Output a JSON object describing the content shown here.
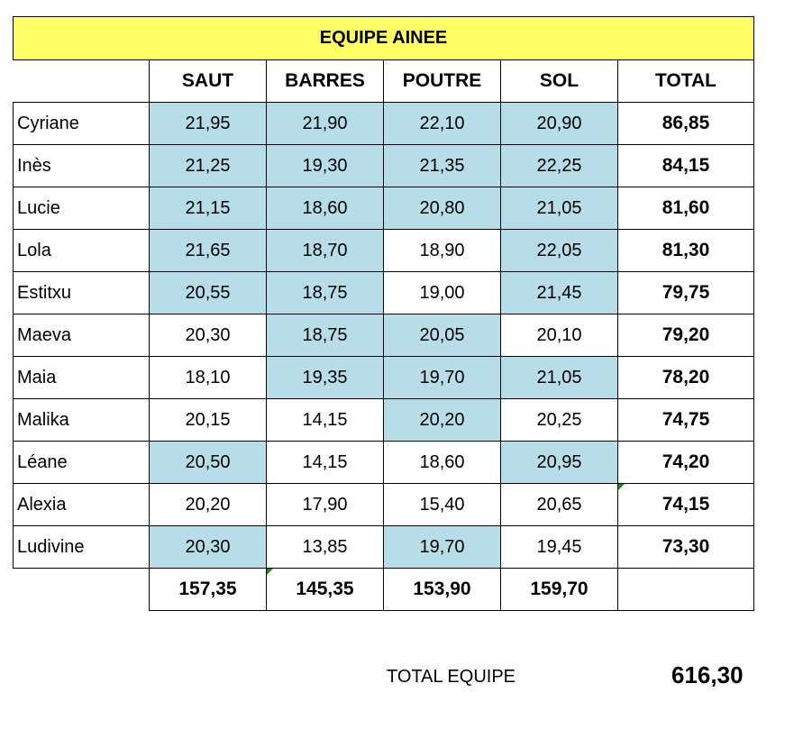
{
  "title": "EQUIPE AINEE",
  "headers": [
    "SAUT",
    "BARRES",
    "POUTRE",
    "SOL",
    "TOTAL"
  ],
  "highlight_color": "#b7dde8",
  "title_color": "#ffff66",
  "rows": [
    {
      "name": "Cyriane",
      "scores": [
        "21,95",
        "21,90",
        "22,10",
        "20,90"
      ],
      "total": "86,85",
      "hl": [
        true,
        true,
        true,
        true
      ]
    },
    {
      "name": "Inès",
      "scores": [
        "21,25",
        "19,30",
        "21,35",
        "22,25"
      ],
      "total": "84,15",
      "hl": [
        true,
        true,
        true,
        true
      ]
    },
    {
      "name": "Lucie",
      "scores": [
        "21,15",
        "18,60",
        "20,80",
        "21,05"
      ],
      "total": "81,60",
      "hl": [
        true,
        true,
        true,
        true
      ]
    },
    {
      "name": "Lola",
      "scores": [
        "21,65",
        "18,70",
        "18,90",
        "22,05"
      ],
      "total": "81,30",
      "hl": [
        true,
        true,
        false,
        true
      ]
    },
    {
      "name": "Estitxu",
      "scores": [
        "20,55",
        "18,75",
        "19,00",
        "21,45"
      ],
      "total": "79,75",
      "hl": [
        true,
        true,
        false,
        true
      ]
    },
    {
      "name": "Maeva",
      "scores": [
        "20,30",
        "18,75",
        "20,05",
        "20,10"
      ],
      "total": "79,20",
      "hl": [
        false,
        true,
        true,
        false
      ]
    },
    {
      "name": "Maia",
      "scores": [
        "18,10",
        "19,35",
        "19,70",
        "21,05"
      ],
      "total": "78,20",
      "hl": [
        false,
        true,
        true,
        true
      ]
    },
    {
      "name": "Malika",
      "scores": [
        "20,15",
        "14,15",
        "20,20",
        "20,25"
      ],
      "total": "74,75",
      "hl": [
        false,
        false,
        true,
        false
      ]
    },
    {
      "name": "Léane",
      "scores": [
        "20,50",
        "14,15",
        "18,60",
        "20,95"
      ],
      "total": "74,20",
      "hl": [
        true,
        false,
        false,
        true
      ]
    },
    {
      "name": "Alexia",
      "scores": [
        "20,20",
        "17,90",
        "15,40",
        "20,65"
      ],
      "total": "74,15",
      "hl": [
        false,
        false,
        false,
        false
      ]
    },
    {
      "name": "Ludivine",
      "scores": [
        "20,30",
        "13,85",
        "19,70",
        "19,45"
      ],
      "total": "73,30",
      "hl": [
        true,
        false,
        true,
        false
      ]
    }
  ],
  "column_totals": [
    "157,35",
    "145,35",
    "153,90",
    "159,70"
  ],
  "team_total_label": "TOTAL EQUIPE",
  "team_total_value": "616,30"
}
